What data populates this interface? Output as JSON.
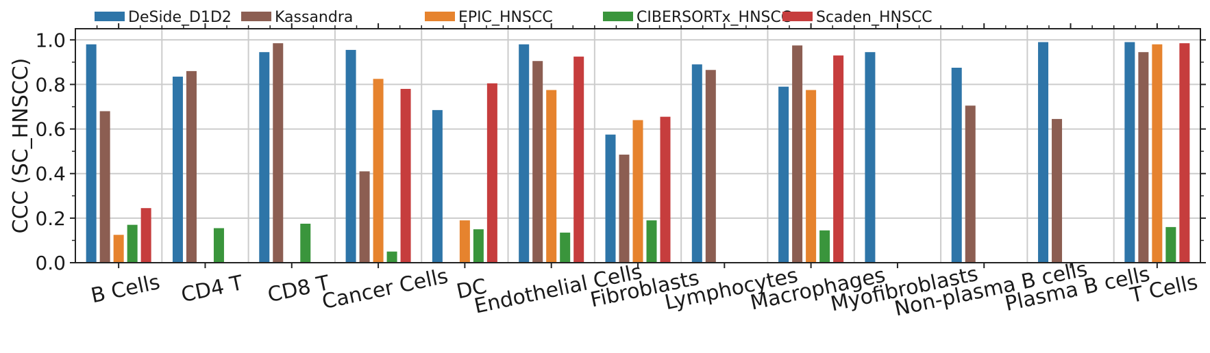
{
  "chart_data": {
    "type": "bar",
    "title": "",
    "xlabel": "",
    "ylabel": "CCC (SC_HNSCC)",
    "ylim": [
      0,
      1.05
    ],
    "yticks": [
      "0.0",
      "0.2",
      "0.4",
      "0.6",
      "0.8",
      "1.0"
    ],
    "grid": true,
    "legend_position": "top",
    "categories": [
      "B Cells",
      "CD4 T",
      "CD8 T",
      "Cancer Cells",
      "DC",
      "Endothelial Cells",
      "Fibroblasts",
      "Lymphocytes",
      "Macrophages",
      "Myofibroblasts",
      "Non-plasma B cells",
      "Plasma B cells",
      "T Cells"
    ],
    "series": [
      {
        "name": "DeSide_D1D2",
        "color": "#2e75a8",
        "values": [
          0.98,
          0.835,
          0.945,
          0.955,
          0.685,
          0.98,
          0.575,
          0.89,
          0.79,
          0.945,
          0.875,
          0.99,
          0.99
        ]
      },
      {
        "name": "Kassandra",
        "color": "#8c5e52",
        "values": [
          0.68,
          0.86,
          0.985,
          0.41,
          null,
          0.905,
          0.485,
          0.865,
          0.975,
          null,
          0.705,
          0.645,
          0.945
        ]
      },
      {
        "name": "EPIC_HNSCC",
        "color": "#e6832e",
        "values": [
          0.125,
          null,
          null,
          0.825,
          0.19,
          0.775,
          0.64,
          null,
          0.775,
          null,
          null,
          null,
          0.98
        ]
      },
      {
        "name": "CIBERSORTx_HNSCC",
        "color": "#3a953c",
        "values": [
          0.17,
          0.155,
          0.175,
          0.05,
          0.15,
          0.135,
          0.19,
          null,
          0.145,
          null,
          null,
          null,
          0.16
        ]
      },
      {
        "name": "Scaden_HNSCC",
        "color": "#c63d3d",
        "values": [
          0.245,
          null,
          null,
          0.78,
          0.805,
          0.925,
          0.655,
          null,
          0.93,
          null,
          null,
          null,
          0.985
        ]
      }
    ]
  }
}
